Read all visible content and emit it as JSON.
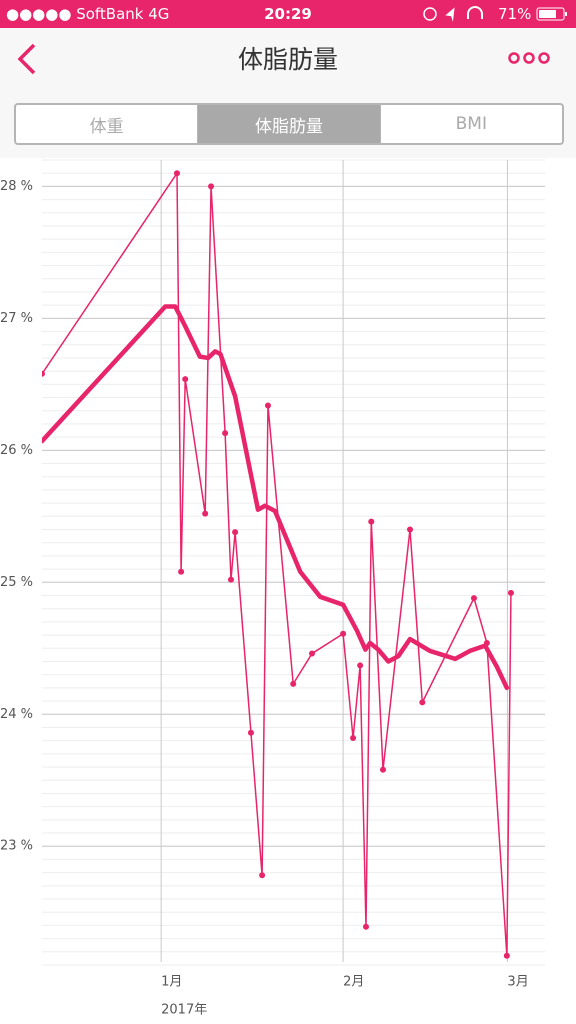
{
  "status_bar": {
    "carrier": "●●●●● SoftBank  4G",
    "time": "20:29",
    "battery": "71%"
  },
  "nav": {
    "title": "体脂肪量"
  },
  "segments": {
    "items": [
      "体重",
      "体脂肪量",
      "BMI"
    ],
    "selected": 1
  },
  "chart_data": {
    "type": "line",
    "xlim": [
      -20.3,
      65.4
    ],
    "xticks": [
      {
        "value": 0,
        "label": "1月"
      },
      {
        "value": 31,
        "label": "2月"
      },
      {
        "value": 59,
        "label": "3月"
      }
    ],
    "x_sublabel": "2017年",
    "ylim": [
      22.1,
      28.2
    ],
    "yticks": [
      {
        "value": 23,
        "label": "23 %"
      },
      {
        "value": 24,
        "label": "24 %"
      },
      {
        "value": 25,
        "label": "25 %"
      },
      {
        "value": 26,
        "label": "26 %"
      },
      {
        "value": 27,
        "label": "27 %"
      },
      {
        "value": 28,
        "label": "28 %"
      }
    ],
    "grid": true,
    "minor_grid_step": 0.1,
    "series": [
      {
        "color": "#e8246a",
        "line_width": 1.5,
        "markers": true,
        "x": [
          -20.3,
          2.7,
          3.4,
          4.1,
          7.5,
          8.5,
          10.9,
          11.9,
          12.6,
          15.3,
          17.2,
          18.2,
          22.5,
          25.7,
          31.0,
          32.7,
          33.9,
          34.9,
          35.8,
          37.8,
          42.4,
          44.5,
          53.3,
          55.5,
          58.9,
          59.6
        ],
        "values": [
          26.58,
          28.1,
          25.08,
          26.54,
          25.52,
          28.0,
          26.13,
          25.02,
          25.38,
          23.86,
          22.78,
          26.34,
          24.23,
          24.46,
          24.61,
          23.82,
          24.37,
          22.39,
          25.46,
          23.58,
          25.4,
          24.09,
          24.88,
          24.54,
          22.17,
          24.92
        ]
      },
      {
        "color": "#e8246a",
        "line_width": 4.5,
        "markers": false,
        "x": [
          -20.3,
          0.7,
          2.4,
          4.1,
          6.6,
          8.0,
          9.2,
          10.1,
          12.6,
          16.5,
          17.7,
          19.4,
          23.7,
          27.1,
          31.0,
          33.4,
          34.8,
          35.6,
          37.0,
          38.7,
          40.4,
          42.4,
          45.8,
          50.1,
          52.6,
          55.2,
          57.2,
          58.9
        ],
        "values": [
          26.07,
          27.09,
          27.09,
          26.94,
          26.71,
          26.7,
          26.75,
          26.73,
          26.41,
          25.55,
          25.58,
          25.54,
          25.08,
          24.89,
          24.83,
          24.63,
          24.49,
          24.54,
          24.49,
          24.4,
          24.44,
          24.57,
          24.48,
          24.42,
          24.48,
          24.52,
          24.36,
          24.2
        ]
      }
    ]
  }
}
